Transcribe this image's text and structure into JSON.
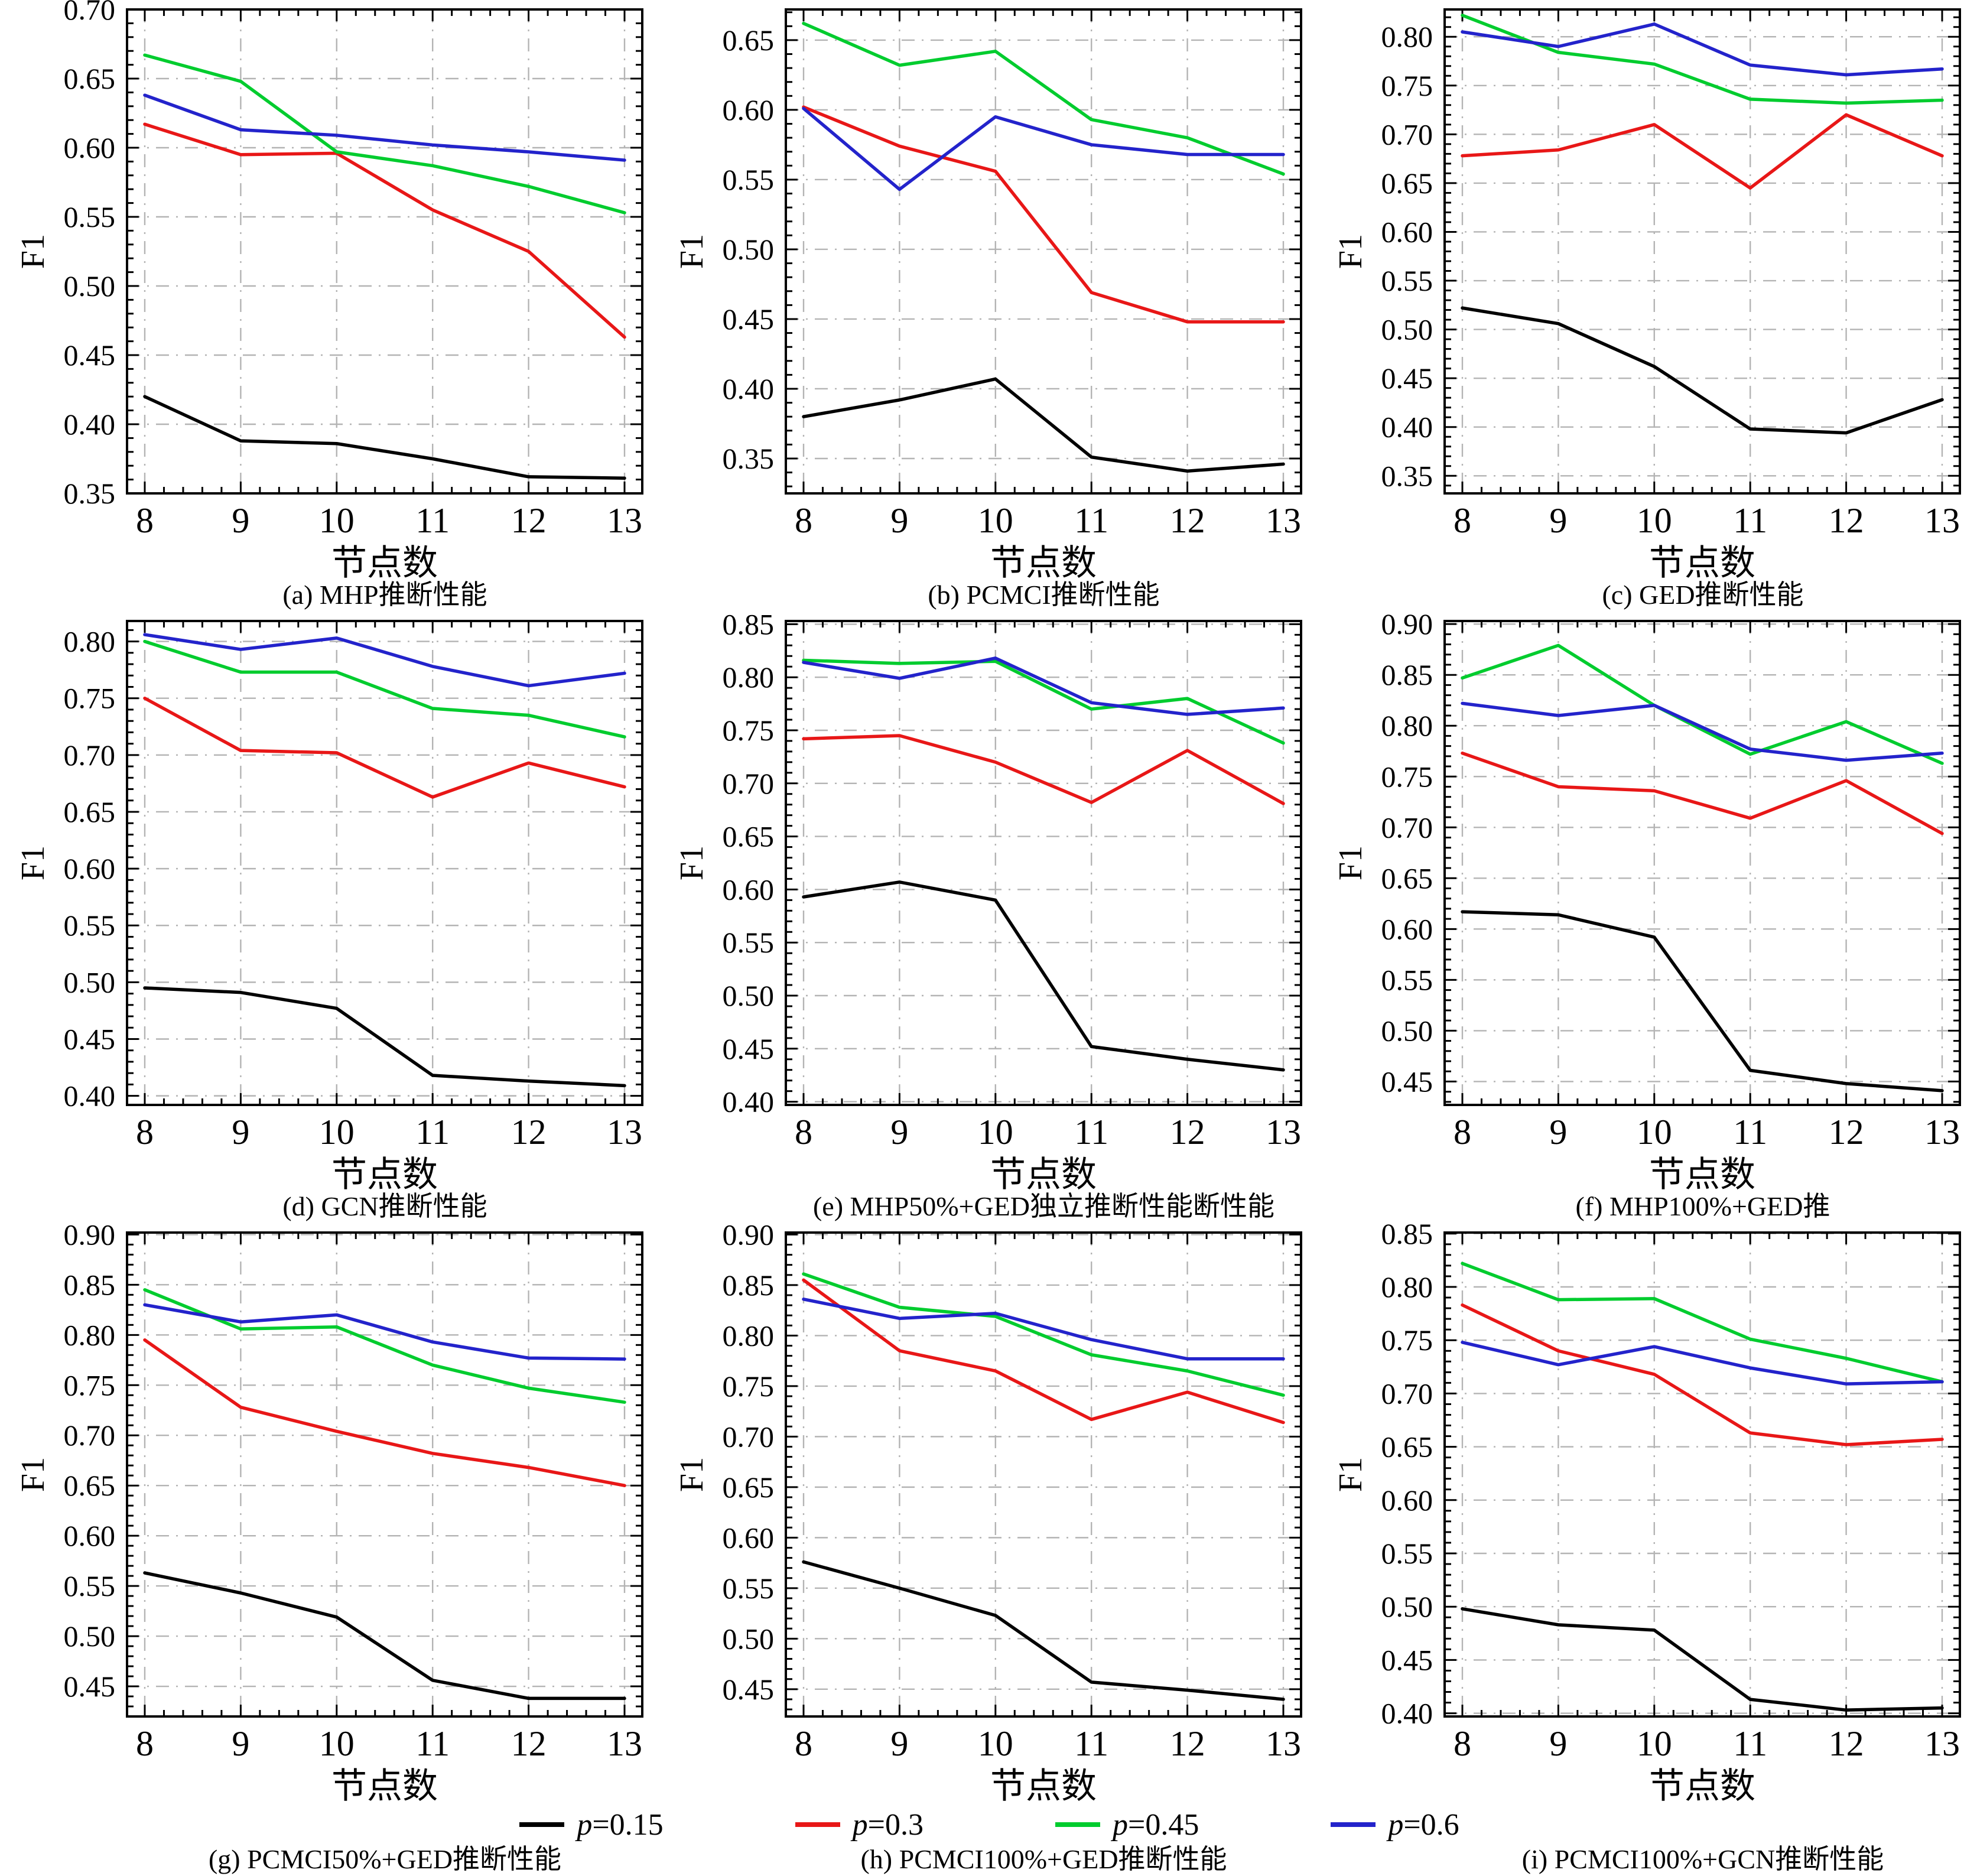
{
  "figure": {
    "ylabel": "F1",
    "xlabel": "节点数"
  },
  "legend": {
    "items": [
      {
        "sym": "p",
        "rest": "=0.15",
        "label": "p=0.15",
        "color": "#000000"
      },
      {
        "sym": "p",
        "rest": "=0.3",
        "label": "p=0.3",
        "color": "#e81717"
      },
      {
        "sym": "p",
        "rest": "=0.45",
        "label": "p=0.45",
        "color": "#00cc2e"
      },
      {
        "sym": "p",
        "rest": "=0.6",
        "label": "p=0.6",
        "color": "#2323cb"
      }
    ]
  },
  "chart_data": [
    {
      "type": "line",
      "caption": "(a) MHP推断性能",
      "xlabel": "节点数",
      "ylabel": "F1",
      "x": [
        8,
        9,
        10,
        11,
        12,
        13
      ],
      "yticks": [
        0.35,
        0.4,
        0.45,
        0.5,
        0.55,
        0.6,
        0.65,
        0.7
      ],
      "ylim": [
        0.35,
        0.7
      ],
      "series": [
        {
          "name": "p=0.15",
          "values": [
            0.42,
            0.388,
            0.386,
            0.375,
            0.362,
            0.361
          ]
        },
        {
          "name": "p=0.3",
          "values": [
            0.617,
            0.595,
            0.596,
            0.555,
            0.525,
            0.463
          ]
        },
        {
          "name": "p=0.45",
          "values": [
            0.667,
            0.648,
            0.597,
            0.587,
            0.572,
            0.553
          ]
        },
        {
          "name": "p=0.6",
          "values": [
            0.638,
            0.613,
            0.609,
            0.602,
            0.597,
            0.591
          ]
        }
      ]
    },
    {
      "type": "line",
      "caption": "(b) PCMCI推断性能",
      "xlabel": "节点数",
      "ylabel": "F1",
      "x": [
        8,
        9,
        10,
        11,
        12,
        13
      ],
      "yticks": [
        0.35,
        0.4,
        0.45,
        0.5,
        0.55,
        0.6,
        0.65
      ],
      "ylim": [
        0.325,
        0.672
      ],
      "series": [
        {
          "name": "p=0.15",
          "values": [
            0.38,
            0.392,
            0.407,
            0.351,
            0.341,
            0.346
          ]
        },
        {
          "name": "p=0.3",
          "values": [
            0.602,
            0.574,
            0.556,
            0.469,
            0.448,
            0.448
          ]
        },
        {
          "name": "p=0.45",
          "values": [
            0.662,
            0.632,
            0.642,
            0.593,
            0.58,
            0.554
          ]
        },
        {
          "name": "p=0.6",
          "values": [
            0.601,
            0.543,
            0.595,
            0.575,
            0.568,
            0.568
          ]
        }
      ]
    },
    {
      "type": "line",
      "caption": "(c) GED推断性能",
      "xlabel": "节点数",
      "ylabel": "F1",
      "x": [
        8,
        9,
        10,
        11,
        12,
        13
      ],
      "yticks": [
        0.35,
        0.4,
        0.45,
        0.5,
        0.55,
        0.6,
        0.65,
        0.7,
        0.75,
        0.8
      ],
      "ylim": [
        0.332,
        0.828
      ],
      "series": [
        {
          "name": "p=0.15",
          "values": [
            0.522,
            0.506,
            0.462,
            0.398,
            0.394,
            0.428
          ]
        },
        {
          "name": "p=0.3",
          "values": [
            0.678,
            0.684,
            0.71,
            0.645,
            0.72,
            0.678
          ]
        },
        {
          "name": "p=0.45",
          "values": [
            0.822,
            0.784,
            0.772,
            0.736,
            0.732,
            0.735
          ]
        },
        {
          "name": "p=0.6",
          "values": [
            0.805,
            0.79,
            0.813,
            0.771,
            0.761,
            0.767
          ]
        }
      ]
    },
    {
      "type": "line",
      "caption": "(d) GCN推断性能",
      "xlabel": "节点数",
      "ylabel": "F1",
      "x": [
        8,
        9,
        10,
        11,
        12,
        13
      ],
      "yticks": [
        0.4,
        0.45,
        0.5,
        0.55,
        0.6,
        0.65,
        0.7,
        0.75,
        0.8
      ],
      "ylim": [
        0.392,
        0.818
      ],
      "series": [
        {
          "name": "p=0.15",
          "values": [
            0.495,
            0.491,
            0.477,
            0.418,
            0.413,
            0.409
          ]
        },
        {
          "name": "p=0.3",
          "values": [
            0.75,
            0.704,
            0.702,
            0.663,
            0.693,
            0.672
          ]
        },
        {
          "name": "p=0.45",
          "values": [
            0.8,
            0.773,
            0.773,
            0.741,
            0.735,
            0.716
          ]
        },
        {
          "name": "p=0.6",
          "values": [
            0.806,
            0.793,
            0.803,
            0.778,
            0.761,
            0.772
          ]
        }
      ]
    },
    {
      "type": "line",
      "caption": "(e) MHP50%+GED独立推断性能断性能",
      "xlabel": "节点数",
      "ylabel": "F1",
      "x": [
        8,
        9,
        10,
        11,
        12,
        13
      ],
      "yticks": [
        0.4,
        0.45,
        0.5,
        0.55,
        0.6,
        0.65,
        0.7,
        0.75,
        0.8,
        0.85
      ],
      "ylim": [
        0.397,
        0.853
      ],
      "series": [
        {
          "name": "p=0.15",
          "values": [
            0.593,
            0.607,
            0.59,
            0.452,
            0.44,
            0.43
          ]
        },
        {
          "name": "p=0.3",
          "values": [
            0.742,
            0.745,
            0.72,
            0.682,
            0.731,
            0.681
          ]
        },
        {
          "name": "p=0.45",
          "values": [
            0.816,
            0.813,
            0.815,
            0.77,
            0.78,
            0.738
          ]
        },
        {
          "name": "p=0.6",
          "values": [
            0.814,
            0.799,
            0.818,
            0.776,
            0.765,
            0.771
          ]
        }
      ]
    },
    {
      "type": "line",
      "caption": "(f) MHP100%+GED推",
      "xlabel": "节点数",
      "ylabel": "F1",
      "x": [
        8,
        9,
        10,
        11,
        12,
        13
      ],
      "yticks": [
        0.45,
        0.5,
        0.55,
        0.6,
        0.65,
        0.7,
        0.75,
        0.8,
        0.85,
        0.9
      ],
      "ylim": [
        0.427,
        0.903
      ],
      "series": [
        {
          "name": "p=0.15",
          "values": [
            0.617,
            0.614,
            0.592,
            0.461,
            0.448,
            0.441
          ]
        },
        {
          "name": "p=0.3",
          "values": [
            0.773,
            0.74,
            0.736,
            0.709,
            0.746,
            0.694
          ]
        },
        {
          "name": "p=0.45",
          "values": [
            0.847,
            0.879,
            0.82,
            0.772,
            0.804,
            0.763
          ]
        },
        {
          "name": "p=0.6",
          "values": [
            0.822,
            0.81,
            0.82,
            0.777,
            0.766,
            0.773
          ]
        }
      ]
    },
    {
      "type": "line",
      "caption": "(g) PCMCI50%+GED推断性能",
      "xlabel": "节点数",
      "ylabel": "F1",
      "x": [
        8,
        9,
        10,
        11,
        12,
        13
      ],
      "yticks": [
        0.45,
        0.5,
        0.55,
        0.6,
        0.65,
        0.7,
        0.75,
        0.8,
        0.85,
        0.9
      ],
      "ylim": [
        0.42,
        0.902
      ],
      "series": [
        {
          "name": "p=0.15",
          "values": [
            0.563,
            0.543,
            0.519,
            0.456,
            0.438,
            0.438
          ]
        },
        {
          "name": "p=0.3",
          "values": [
            0.795,
            0.728,
            0.704,
            0.682,
            0.668,
            0.65
          ]
        },
        {
          "name": "p=0.45",
          "values": [
            0.845,
            0.806,
            0.808,
            0.77,
            0.747,
            0.733
          ]
        },
        {
          "name": "p=0.6",
          "values": [
            0.83,
            0.813,
            0.82,
            0.793,
            0.777,
            0.776
          ]
        }
      ]
    },
    {
      "type": "line",
      "caption": "(h) PCMCI100%+GED推断性能",
      "xlabel": "节点数",
      "ylabel": "F1",
      "x": [
        8,
        9,
        10,
        11,
        12,
        13
      ],
      "yticks": [
        0.45,
        0.5,
        0.55,
        0.6,
        0.65,
        0.7,
        0.75,
        0.8,
        0.85,
        0.9
      ],
      "ylim": [
        0.423,
        0.902
      ],
      "series": [
        {
          "name": "p=0.15",
          "values": [
            0.576,
            0.55,
            0.523,
            0.457,
            0.449,
            0.44
          ]
        },
        {
          "name": "p=0.3",
          "values": [
            0.855,
            0.785,
            0.765,
            0.717,
            0.744,
            0.714
          ]
        },
        {
          "name": "p=0.45",
          "values": [
            0.861,
            0.828,
            0.819,
            0.781,
            0.765,
            0.741
          ]
        },
        {
          "name": "p=0.6",
          "values": [
            0.836,
            0.817,
            0.822,
            0.796,
            0.777,
            0.777
          ]
        }
      ]
    },
    {
      "type": "line",
      "caption": "(i) PCMCI100%+GCN推断性能",
      "xlabel": "节点数",
      "ylabel": "F1",
      "x": [
        8,
        9,
        10,
        11,
        12,
        13
      ],
      "yticks": [
        0.4,
        0.45,
        0.5,
        0.55,
        0.6,
        0.65,
        0.7,
        0.75,
        0.8,
        0.85
      ],
      "ylim": [
        0.397,
        0.851
      ],
      "series": [
        {
          "name": "p=0.15",
          "values": [
            0.498,
            0.483,
            0.478,
            0.413,
            0.403,
            0.405
          ]
        },
        {
          "name": "p=0.3",
          "values": [
            0.783,
            0.74,
            0.718,
            0.663,
            0.652,
            0.657
          ]
        },
        {
          "name": "p=0.45",
          "values": [
            0.822,
            0.788,
            0.789,
            0.751,
            0.733,
            0.711
          ]
        },
        {
          "name": "p=0.6",
          "values": [
            0.748,
            0.727,
            0.744,
            0.724,
            0.709,
            0.711
          ]
        }
      ]
    }
  ]
}
